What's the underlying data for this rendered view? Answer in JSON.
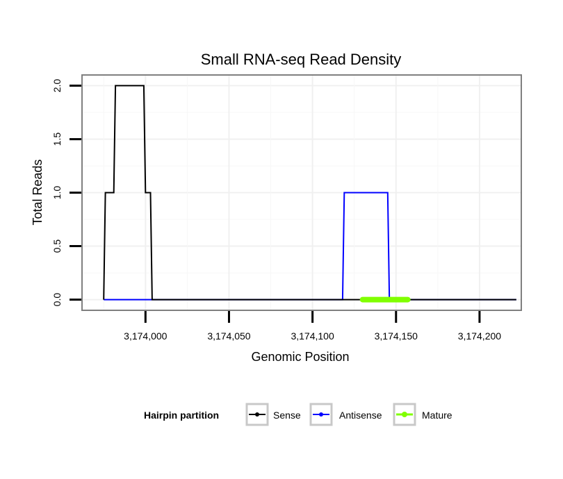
{
  "chart_data": {
    "type": "line",
    "title": "Small RNA-seq Read Density",
    "xlabel": "Genomic Position",
    "ylabel": "Total Reads",
    "xlim": [
      3173962,
      3174225
    ],
    "ylim": [
      -0.1,
      2.1
    ],
    "x_ticks": [
      3174000,
      3174050,
      3174100,
      3174150,
      3174200
    ],
    "x_tick_labels": [
      "3,174,000",
      "3,174,050",
      "3,174,100",
      "3,174,150",
      "3,174,200"
    ],
    "y_ticks": [
      0.0,
      0.5,
      1.0,
      1.5,
      2.0
    ],
    "y_tick_labels": [
      "0.0",
      "0.5",
      "1.0",
      "1.5",
      "2.0"
    ],
    "grid": true,
    "legend": {
      "title": "Hairpin partition",
      "position": "bottom"
    },
    "series": [
      {
        "name": "Sense",
        "color": "#000000",
        "x": [
          3173975,
          3173976,
          3173981,
          3173982,
          3173999,
          3174000,
          3174003,
          3174004,
          3174222
        ],
        "y": [
          0,
          1,
          1,
          2,
          2,
          1,
          1,
          0,
          0
        ]
      },
      {
        "name": "Antisense",
        "color": "#0000ff",
        "x": [
          3173975,
          3174004,
          3174118,
          3174119,
          3174145,
          3174146,
          3174222
        ],
        "y": [
          0,
          0,
          0,
          1,
          1,
          0,
          0
        ]
      },
      {
        "name": "Mature",
        "color": "#80ff00",
        "x": [
          3174130,
          3174157
        ],
        "y": [
          0,
          0
        ]
      }
    ]
  }
}
